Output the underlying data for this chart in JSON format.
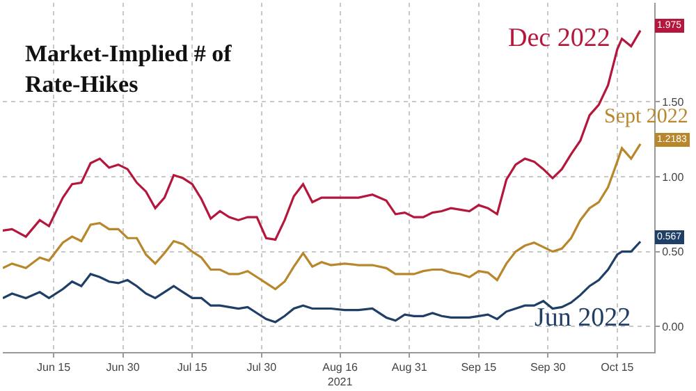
{
  "chart_data": {
    "type": "line",
    "title": "Market-Implied # of\nRate-Hikes",
    "x": [
      "2021-06-04",
      "2021-06-06",
      "2021-06-09",
      "2021-06-12",
      "2021-06-14",
      "2021-06-17",
      "2021-06-19",
      "2021-06-21",
      "2021-06-23",
      "2021-06-25",
      "2021-06-27",
      "2021-06-29",
      "2021-07-01",
      "2021-07-03",
      "2021-07-05",
      "2021-07-07",
      "2021-07-09",
      "2021-07-11",
      "2021-07-13",
      "2021-07-15",
      "2021-07-17",
      "2021-07-19",
      "2021-07-21",
      "2021-07-23",
      "2021-07-25",
      "2021-07-27",
      "2021-07-29",
      "2021-07-31",
      "2021-08-02",
      "2021-08-04",
      "2021-08-06",
      "2021-08-08",
      "2021-08-10",
      "2021-08-12",
      "2021-08-14",
      "2021-08-17",
      "2021-08-20",
      "2021-08-23",
      "2021-08-26",
      "2021-08-28",
      "2021-08-30",
      "2021-09-01",
      "2021-09-03",
      "2021-09-05",
      "2021-09-07",
      "2021-09-09",
      "2021-09-11",
      "2021-09-13",
      "2021-09-15",
      "2021-09-17",
      "2021-09-19",
      "2021-09-21",
      "2021-09-23",
      "2021-09-25",
      "2021-09-27",
      "2021-09-29",
      "2021-10-01",
      "2021-10-03",
      "2021-10-05",
      "2021-10-07",
      "2021-10-09",
      "2021-10-11",
      "2021-10-13",
      "2021-10-15",
      "2021-10-16",
      "2021-10-18",
      "2021-10-20"
    ],
    "series": [
      {
        "name": "Dec 2022",
        "color": "#b5163b",
        "values": [
          0.64,
          0.65,
          0.6,
          0.71,
          0.67,
          0.86,
          0.95,
          0.96,
          1.09,
          1.12,
          1.06,
          1.08,
          1.05,
          0.96,
          0.9,
          0.79,
          0.86,
          1.01,
          0.99,
          0.95,
          0.85,
          0.72,
          0.77,
          0.73,
          0.71,
          0.73,
          0.73,
          0.59,
          0.58,
          0.71,
          0.87,
          0.95,
          0.83,
          0.86,
          0.86,
          0.86,
          0.86,
          0.88,
          0.84,
          0.75,
          0.76,
          0.73,
          0.73,
          0.76,
          0.77,
          0.79,
          0.78,
          0.77,
          0.81,
          0.79,
          0.75,
          0.98,
          1.08,
          1.12,
          1.1,
          1.05,
          0.99,
          1.05,
          1.15,
          1.24,
          1.41,
          1.48,
          1.61,
          1.85,
          1.92,
          1.87,
          1.975
        ]
      },
      {
        "name": "Sept 2022",
        "color": "#b8862b",
        "values": [
          0.39,
          0.42,
          0.39,
          0.46,
          0.44,
          0.56,
          0.6,
          0.57,
          0.68,
          0.69,
          0.65,
          0.65,
          0.59,
          0.59,
          0.48,
          0.42,
          0.49,
          0.57,
          0.55,
          0.5,
          0.46,
          0.38,
          0.38,
          0.35,
          0.35,
          0.37,
          0.33,
          0.29,
          0.25,
          0.3,
          0.4,
          0.49,
          0.4,
          0.43,
          0.41,
          0.42,
          0.41,
          0.41,
          0.39,
          0.35,
          0.35,
          0.35,
          0.37,
          0.38,
          0.38,
          0.36,
          0.35,
          0.33,
          0.37,
          0.36,
          0.31,
          0.42,
          0.5,
          0.54,
          0.56,
          0.53,
          0.5,
          0.52,
          0.59,
          0.71,
          0.79,
          0.83,
          0.93,
          1.1,
          1.19,
          1.12,
          1.2183
        ]
      },
      {
        "name": "Jun 2022",
        "color": "#1f3f66",
        "values": [
          0.19,
          0.22,
          0.19,
          0.23,
          0.19,
          0.25,
          0.3,
          0.27,
          0.35,
          0.33,
          0.3,
          0.29,
          0.31,
          0.27,
          0.22,
          0.19,
          0.23,
          0.27,
          0.23,
          0.19,
          0.19,
          0.14,
          0.14,
          0.13,
          0.12,
          0.13,
          0.09,
          0.05,
          0.03,
          0.07,
          0.12,
          0.14,
          0.12,
          0.12,
          0.12,
          0.11,
          0.11,
          0.12,
          0.06,
          0.04,
          0.08,
          0.07,
          0.07,
          0.09,
          0.07,
          0.06,
          0.06,
          0.06,
          0.07,
          0.08,
          0.05,
          0.1,
          0.12,
          0.14,
          0.14,
          0.17,
          0.12,
          0.13,
          0.16,
          0.21,
          0.27,
          0.31,
          0.38,
          0.48,
          0.5,
          0.5,
          0.567
        ]
      }
    ],
    "annotations": [
      {
        "text": "1.975",
        "x": "2021-10-20",
        "y": 1.975
      },
      {
        "text": "1.2183",
        "x": "2021-10-20",
        "y": 1.2183
      },
      {
        "text": "0.567",
        "x": "2021-10-20",
        "y": 0.567
      }
    ],
    "xlim": [
      "2021-06-04",
      "2021-10-23"
    ],
    "xticks": [
      {
        "value": "2021-06-15",
        "label": "Jun 15"
      },
      {
        "value": "2021-06-30",
        "label": "Jun 30"
      },
      {
        "value": "2021-07-15",
        "label": "Jul 15"
      },
      {
        "value": "2021-07-30",
        "label": "Jul 30"
      },
      {
        "value": "2021-08-16",
        "label": "Aug 16\n2021"
      },
      {
        "value": "2021-08-31",
        "label": "Aug 31"
      },
      {
        "value": "2021-09-15",
        "label": "Sep 15"
      },
      {
        "value": "2021-09-30",
        "label": "Sep 30"
      },
      {
        "value": "2021-10-15",
        "label": "Oct 15"
      }
    ],
    "ylim": [
      -0.17,
      2.16
    ],
    "yticks": [
      {
        "value": 0,
        "label": "0.00"
      },
      {
        "value": 0.5,
        "label": "0.50"
      },
      {
        "value": 1,
        "label": "1.00"
      },
      {
        "value": 1.5,
        "label": "1.50"
      }
    ],
    "grid": true,
    "legend": "right"
  }
}
